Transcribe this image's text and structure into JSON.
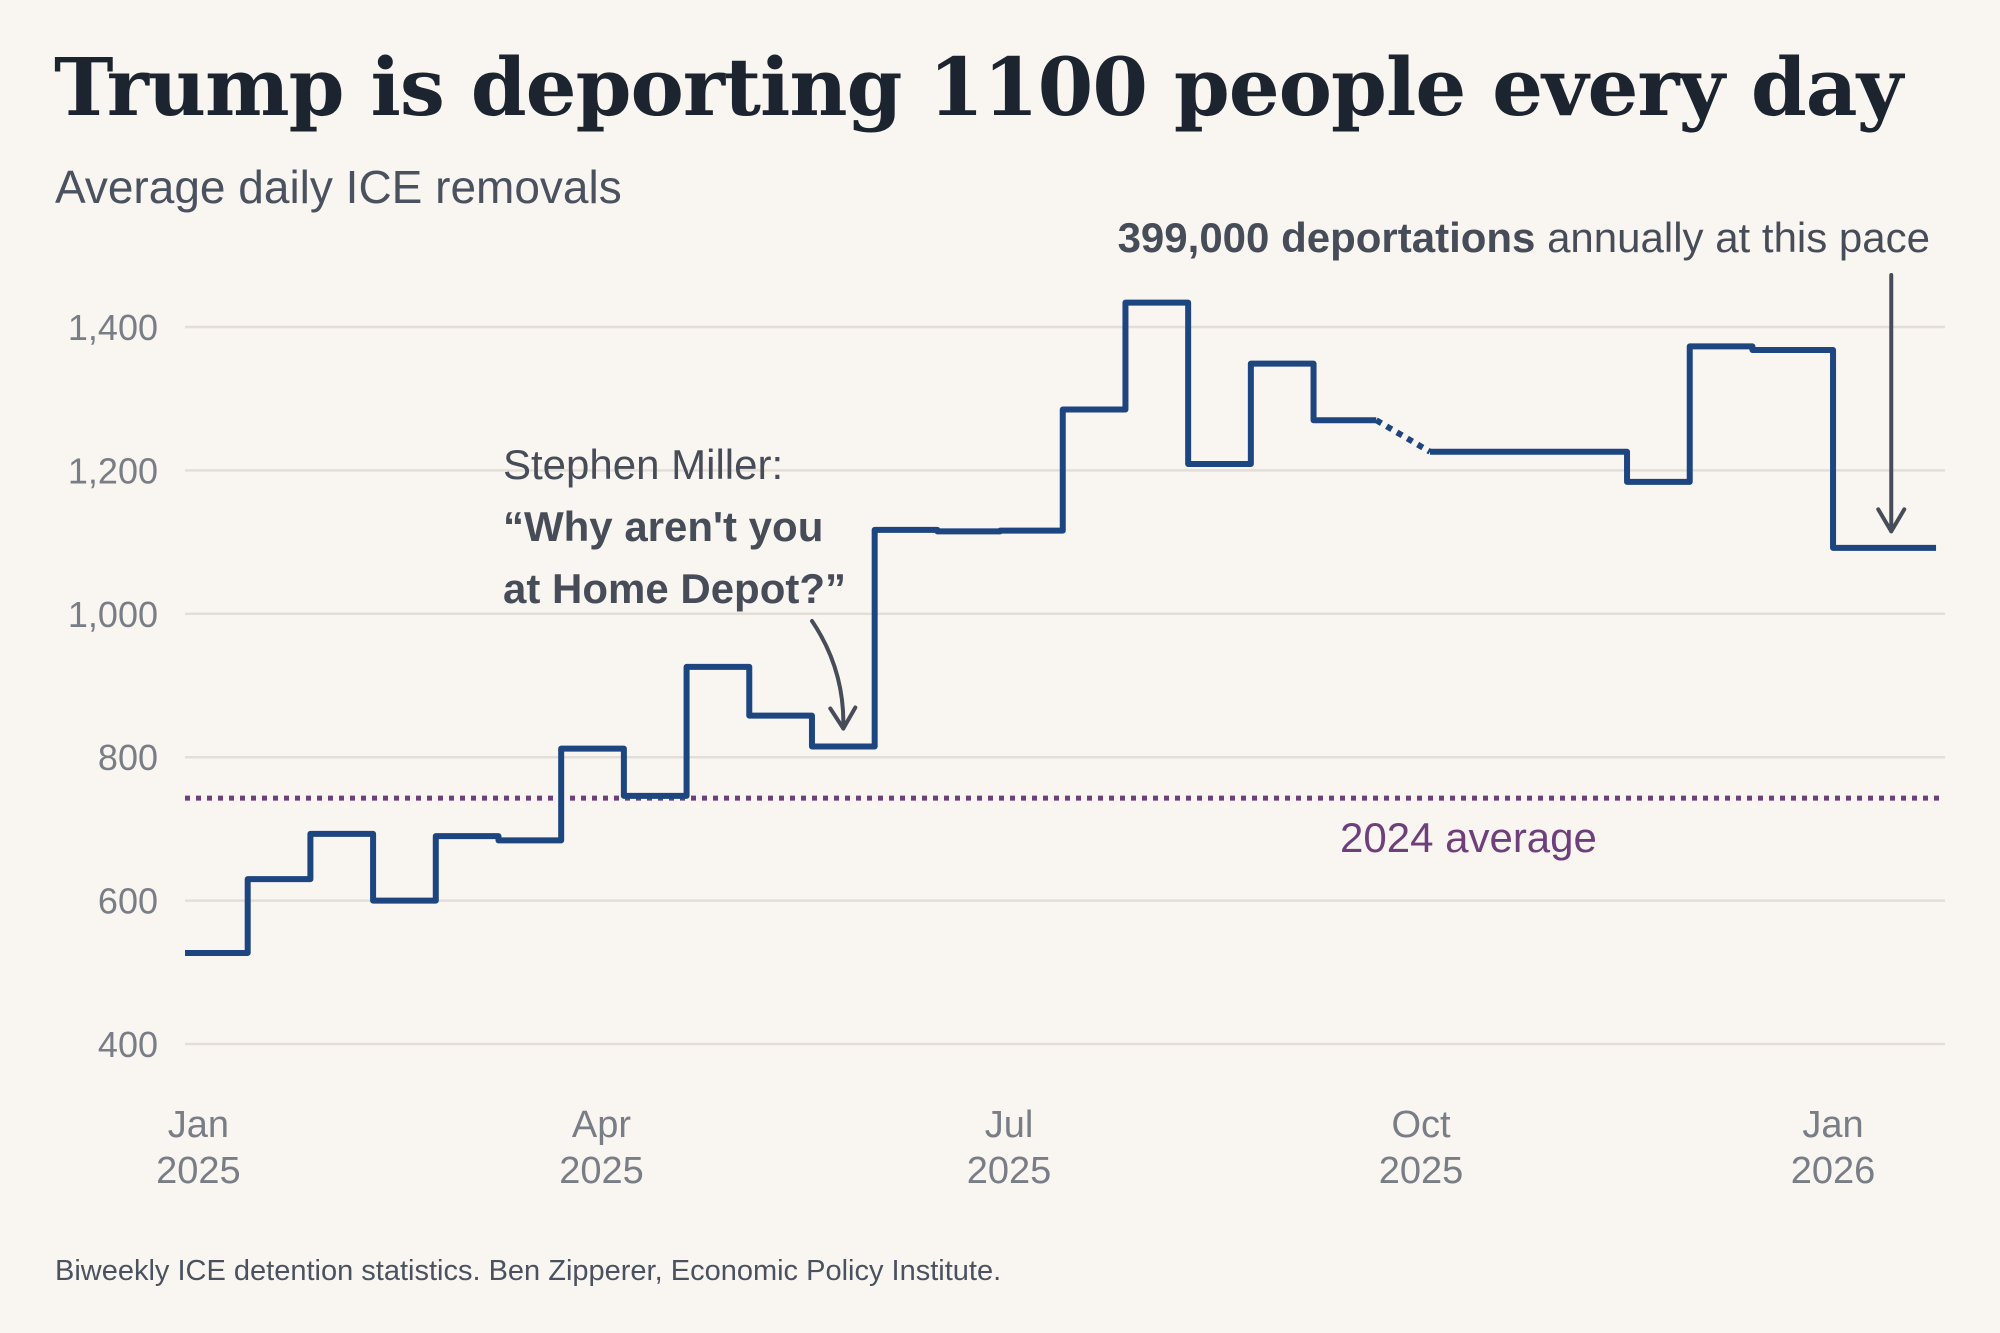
{
  "header": {
    "title": "Trump is deporting 1100 people every day",
    "subtitle": "Average daily ICE removals"
  },
  "footer": {
    "source": "Biweekly ICE detention statistics. Ben Zipperer, Economic Policy Institute."
  },
  "colors": {
    "series": "#1d4580",
    "average": "#6e3f7c",
    "annotation": "#474d58",
    "grid": "#e4ded8",
    "background": "#f9f5f0"
  },
  "chart_data": {
    "type": "line",
    "step": true,
    "title": "Trump is deporting 1100 people every day",
    "subtitle": "Average daily ICE removals",
    "xlabel": "",
    "ylabel": "",
    "x_unit": "days since Jan 1 2025",
    "xlim": [
      -3,
      390
    ],
    "ylim": [
      400,
      1450
    ],
    "grid": true,
    "yticks": [
      400,
      600,
      800,
      1000,
      1200,
      1400
    ],
    "ytick_labels": [
      "400",
      "600",
      "800",
      "1,000",
      "1,200",
      "1,400"
    ],
    "xticks": [
      {
        "day": 0,
        "month": "Jan",
        "year": "2025"
      },
      {
        "day": 90,
        "month": "Apr",
        "year": "2025"
      },
      {
        "day": 181,
        "month": "Jul",
        "year": "2025"
      },
      {
        "day": 273,
        "month": "Oct",
        "year": "2025"
      },
      {
        "day": 365,
        "month": "Jan",
        "year": "2026"
      }
    ],
    "series": [
      {
        "name": "Average daily ICE removals",
        "steps": [
          {
            "start": -3,
            "end": 11,
            "value": 527
          },
          {
            "start": 11,
            "end": 25,
            "value": 630
          },
          {
            "start": 25,
            "end": 39,
            "value": 693
          },
          {
            "start": 39,
            "end": 53,
            "value": 600
          },
          {
            "start": 53,
            "end": 67,
            "value": 690
          },
          {
            "start": 67,
            "end": 81,
            "value": 684
          },
          {
            "start": 81,
            "end": 95,
            "value": 812
          },
          {
            "start": 95,
            "end": 109,
            "value": 746
          },
          {
            "start": 109,
            "end": 123,
            "value": 926
          },
          {
            "start": 123,
            "end": 137,
            "value": 858
          },
          {
            "start": 137,
            "end": 151,
            "value": 815
          },
          {
            "start": 151,
            "end": 165,
            "value": 1117
          },
          {
            "start": 165,
            "end": 179,
            "value": 1115
          },
          {
            "start": 179,
            "end": 193,
            "value": 1116
          },
          {
            "start": 193,
            "end": 207,
            "value": 1285
          },
          {
            "start": 207,
            "end": 221,
            "value": 1434
          },
          {
            "start": 221,
            "end": 235,
            "value": 1209
          },
          {
            "start": 235,
            "end": 249,
            "value": 1349
          },
          {
            "start": 249,
            "end": 263,
            "value": 1270
          },
          {
            "start": 275,
            "end": 319,
            "value": 1226
          },
          {
            "start": 319,
            "end": 333,
            "value": 1184
          },
          {
            "start": 333,
            "end": 347,
            "value": 1373
          },
          {
            "start": 347,
            "end": 365,
            "value": 1368
          },
          {
            "start": 365,
            "end": 388,
            "value": 1092
          }
        ],
        "gap": {
          "from_day": 263,
          "to_day": 275,
          "style": "dotted"
        }
      }
    ],
    "reference_line": {
      "name": "2024 average",
      "value": 743,
      "label": "2024 average",
      "style": "dotted"
    },
    "annotations": [
      {
        "id": "miller",
        "line1": "Stephen Miller:",
        "line2": "“Why aren't you",
        "line3": "at Home Depot?”",
        "points_to_day": 144,
        "points_to_value": 840
      },
      {
        "id": "pace",
        "bold_text": "399,000 deportations",
        "text": " annually at this pace",
        "points_to_day": 378,
        "points_to_value": 1115
      }
    ]
  }
}
